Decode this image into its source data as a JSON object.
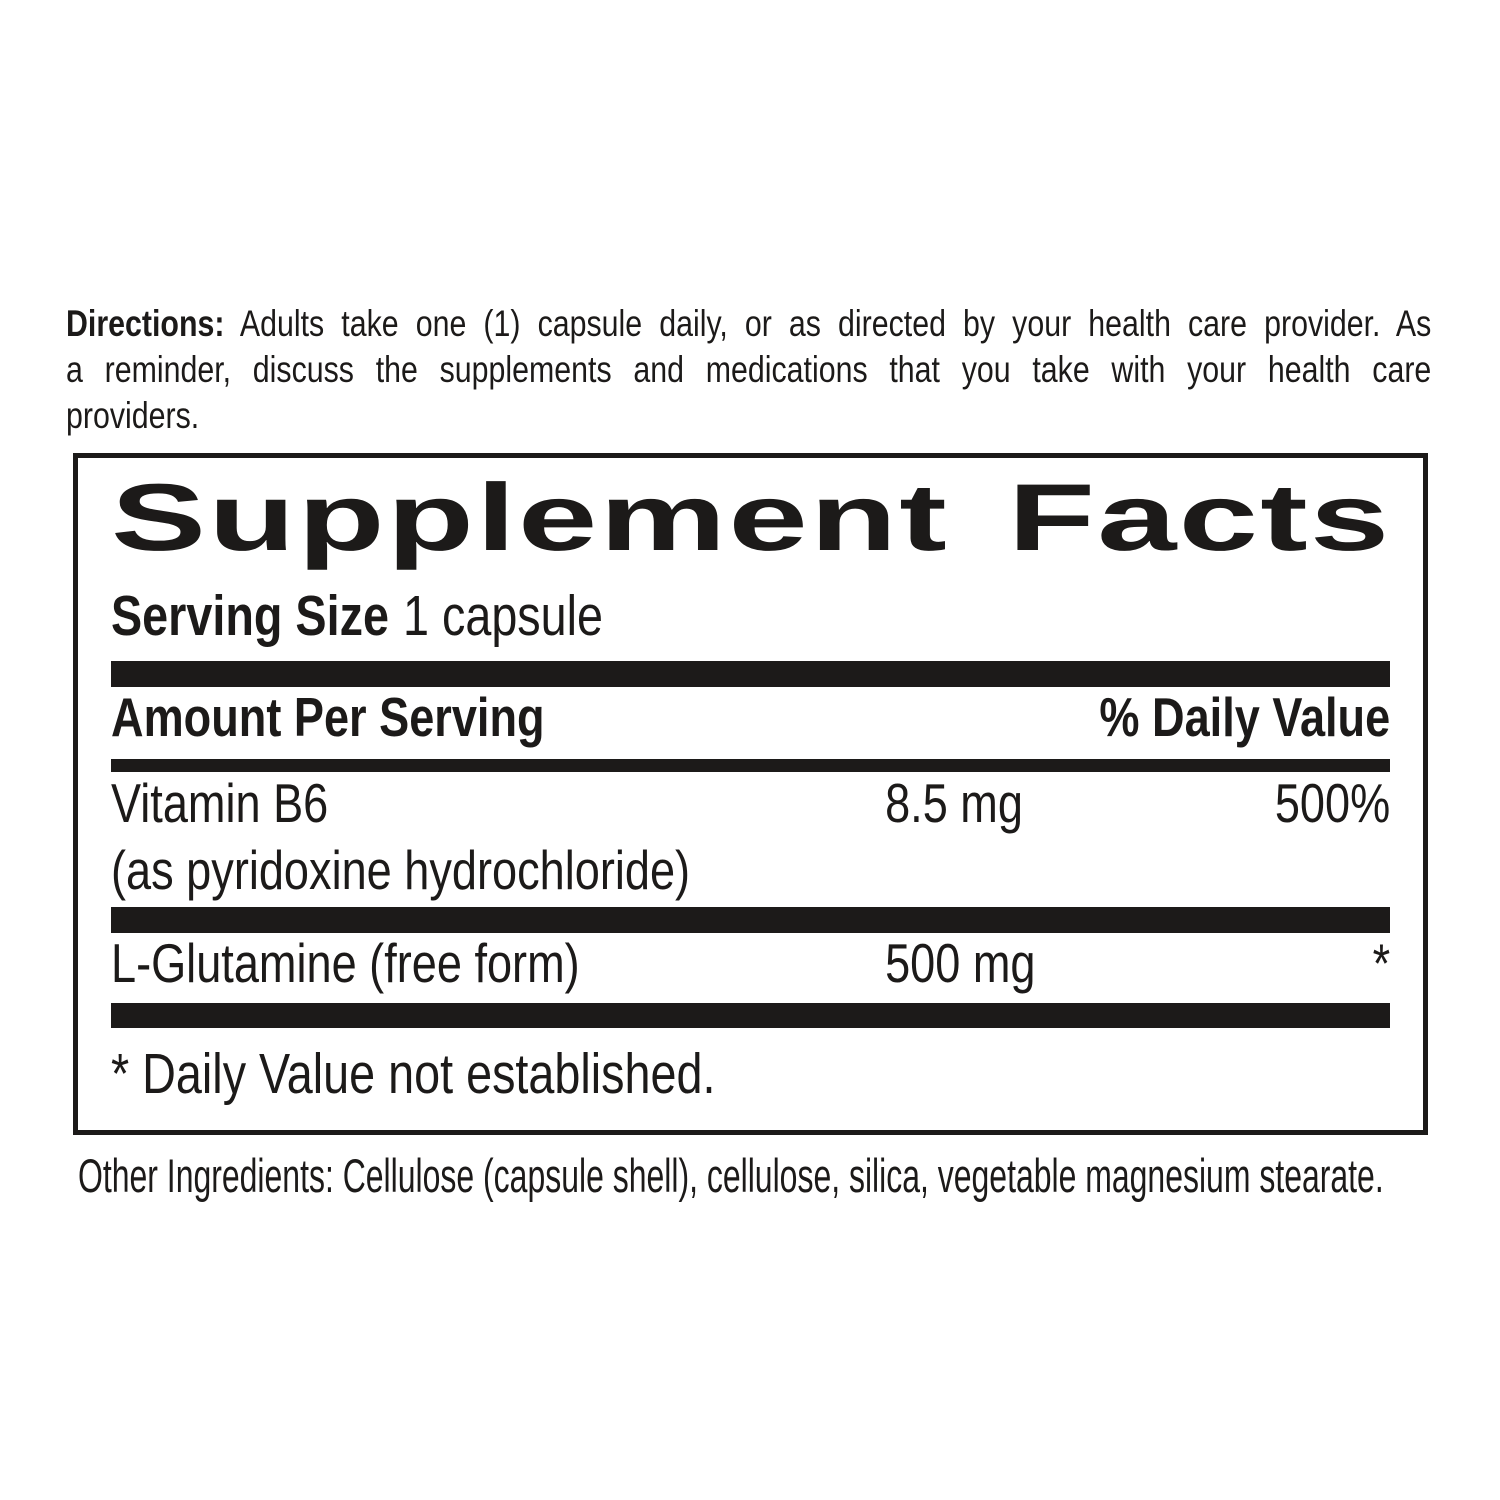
{
  "page": {
    "background_color": "#ffffff",
    "ink_color": "#1c1a19"
  },
  "directions": {
    "label": "Directions:",
    "line1": "Adults take one (1) capsule daily, or as directed by your health care provider.  As",
    "line2": "a reminder, discuss the supplements and medications that you take with your health care",
    "line3": "providers."
  },
  "facts": {
    "title": "Supplement Facts",
    "serving_size_label": "Serving Size",
    "serving_size_value": "1 capsule",
    "header": {
      "amount_label": "Amount Per Serving",
      "daily_value_label": "% Daily Value"
    },
    "rows": [
      {
        "name": "Vitamin B6",
        "name_line2": "(as pyridoxine hydrochloride)",
        "amount": "8.5 mg",
        "daily_value": "500%"
      },
      {
        "name": "L-Glutamine (free form)",
        "amount": "500 mg",
        "daily_value": "*"
      }
    ],
    "footnote": "* Daily Value not established."
  },
  "other_ingredients": "Other Ingredients: Cellulose (capsule shell), cellulose, silica, vegetable magnesium stearate."
}
